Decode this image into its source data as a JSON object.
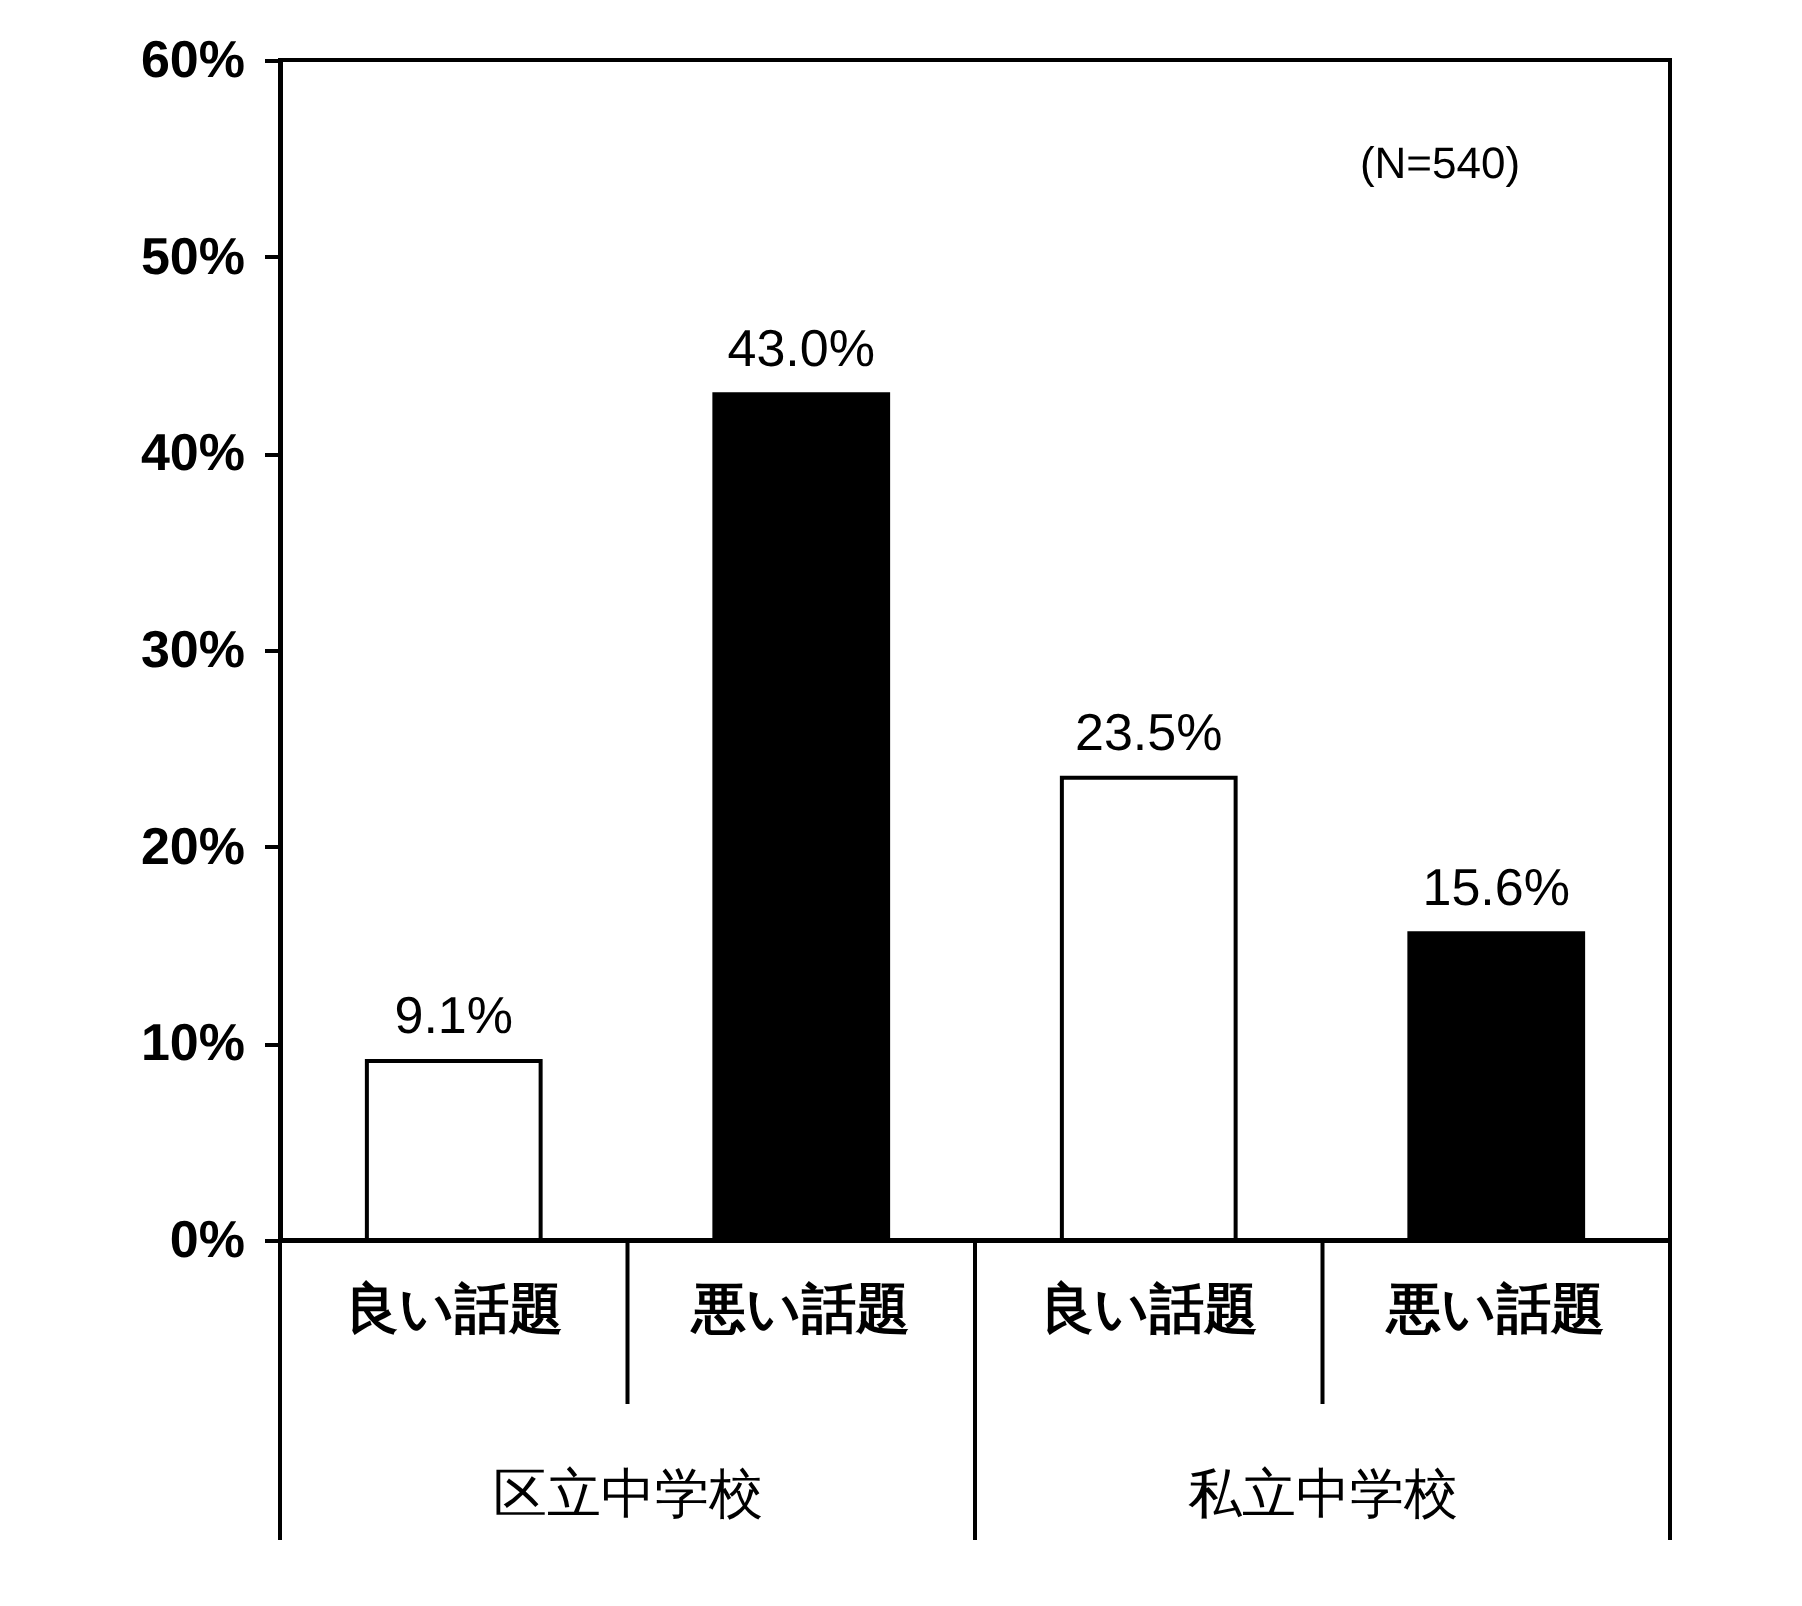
{
  "chart_data": {
    "type": "bar",
    "categories": [
      "良い話題",
      "悪い話題",
      "良い話題",
      "悪い話題"
    ],
    "values": [
      9.1,
      43.0,
      23.5,
      15.6
    ],
    "colors": [
      "#ffffff",
      "#000000",
      "#ffffff",
      "#000000"
    ],
    "value_labels": [
      "9.1%",
      "43.0%",
      "23.5%",
      "15.6%"
    ],
    "ylim": [
      0,
      60
    ],
    "yticks": [
      {
        "value": 0,
        "label": "0%"
      },
      {
        "value": 10,
        "label": "10%"
      },
      {
        "value": 20,
        "label": "20%"
      },
      {
        "value": 30,
        "label": "30%"
      },
      {
        "value": 40,
        "label": "40%"
      },
      {
        "value": 50,
        "label": "50%"
      },
      {
        "value": 60,
        "label": "60%"
      }
    ],
    "annotations": [
      "区立中学校",
      "私立中学校",
      "(N=540)"
    ],
    "grid": false
  }
}
